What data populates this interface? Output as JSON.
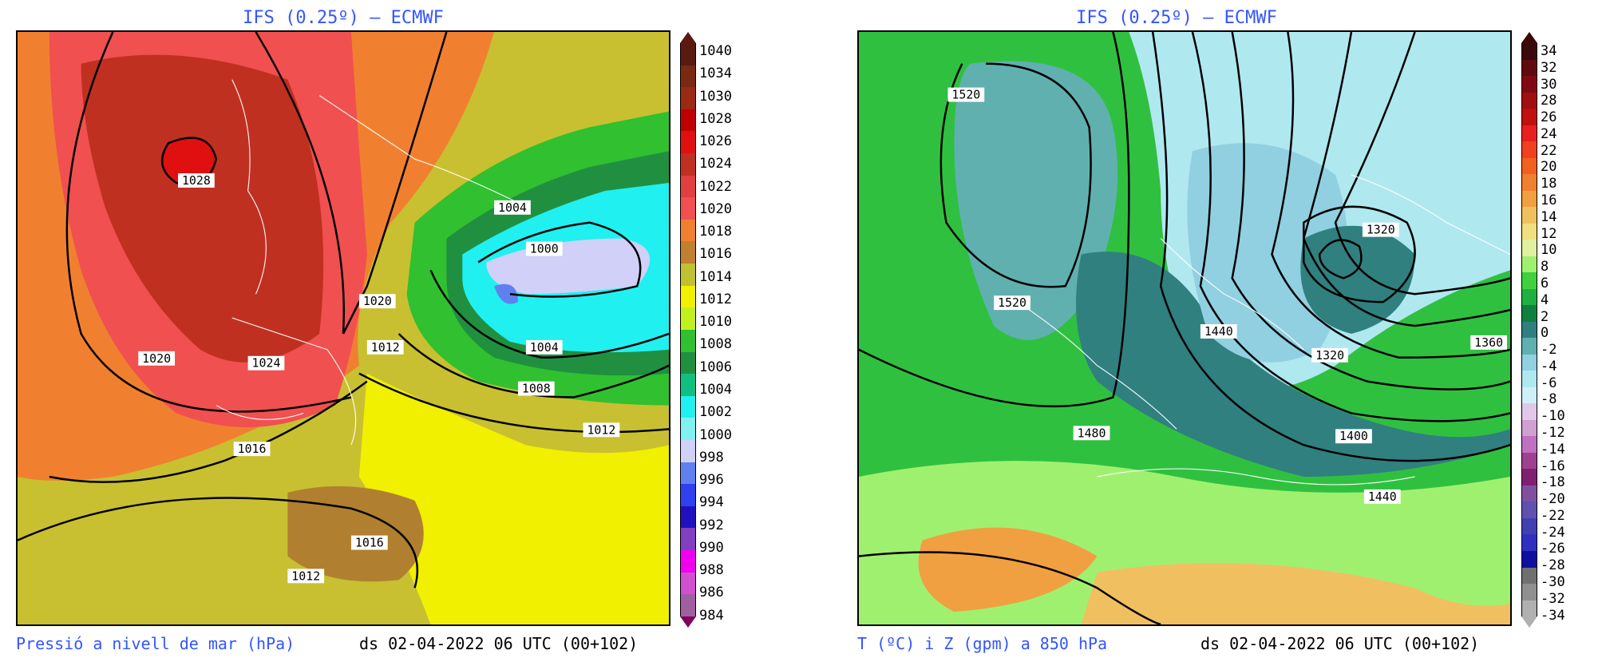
{
  "left_panel": {
    "title": "IFS (0.25º) – ECMWF",
    "footer_left": "Pressió a nivell de mar (hPa)",
    "footer_right": "ds 02-04-2022 06 UTC (00+102)",
    "colorbar": {
      "labels": [
        "1040",
        "1034",
        "1030",
        "1028",
        "1026",
        "1024",
        "1022",
        "1020",
        "1018",
        "1016",
        "1014",
        "1012",
        "1010",
        "1008",
        "1006",
        "1004",
        "1002",
        "1000",
        "998",
        "996",
        "994",
        "992",
        "990",
        "988",
        "986",
        "984"
      ],
      "colors": [
        "#5a1a10",
        "#7a2a12",
        "#9a2a14",
        "#c00000",
        "#e01010",
        "#c03020",
        "#e04040",
        "#f05050",
        "#f08030",
        "#c08030",
        "#c0c030",
        "#f0f000",
        "#c0f020",
        "#30c030",
        "#209040",
        "#10c080",
        "#20f0f0",
        "#80f0f0",
        "#d0d0f8",
        "#6080f0",
        "#3040f0",
        "#2010c0",
        "#8040c0",
        "#f000f0",
        "#d050d0",
        "#a060a0"
      ],
      "arrow_top": "#5a1a10",
      "arrow_bottom": "#800060"
    },
    "contour_labels": [
      {
        "text": "1028"
      },
      {
        "text": "1020"
      },
      {
        "text": "1024"
      },
      {
        "text": "1020"
      },
      {
        "text": "1012"
      },
      {
        "text": "1004"
      },
      {
        "text": "1000"
      },
      {
        "text": "1004"
      },
      {
        "text": "1008"
      },
      {
        "text": "1012"
      },
      {
        "text": "1016"
      },
      {
        "text": "1016"
      },
      {
        "text": "1012"
      }
    ]
  },
  "right_panel": {
    "title": "IFS (0.25º) – ECMWF",
    "footer_left": "T (ºC) i Z (gpm) a 850 hPa",
    "footer_right": "ds 02-04-2022 06 UTC (00+102)",
    "colorbar": {
      "labels": [
        "34",
        "32",
        "30",
        "28",
        "26",
        "24",
        "22",
        "20",
        "18",
        "16",
        "14",
        "12",
        "10",
        "8",
        "6",
        "4",
        "2",
        "0",
        "-2",
        "-4",
        "-6",
        "-8",
        "-10",
        "-12",
        "-14",
        "-16",
        "-18",
        "-20",
        "-22",
        "-24",
        "-26",
        "-28",
        "-30",
        "-32",
        "-34"
      ],
      "colors": [
        "#3a0a08",
        "#600a10",
        "#800a14",
        "#a01010",
        "#c01010",
        "#e82020",
        "#f04020",
        "#f06020",
        "#f08030",
        "#f0a040",
        "#f0c060",
        "#f0e080",
        "#e0f0a0",
        "#a0f070",
        "#40d040",
        "#20b040",
        "#108040",
        "#308080",
        "#60b0b0",
        "#90d0e0",
        "#b0e8f0",
        "#d0f0f8",
        "#e0c8e8",
        "#d0a0d0",
        "#c070c0",
        "#a04090",
        "#802070",
        "#8050a0",
        "#6050b0",
        "#4040b0",
        "#3030c0",
        "#1010a0",
        "#707070",
        "#909090",
        "#b0b0b0"
      ],
      "arrow_top": "#3a0a08",
      "arrow_bottom": "#b0b0b0"
    },
    "contour_labels": [
      {
        "text": "1520"
      },
      {
        "text": "1520"
      },
      {
        "text": "1320"
      },
      {
        "text": "1440"
      },
      {
        "text": "1320"
      },
      {
        "text": "1360"
      },
      {
        "text": "1480"
      },
      {
        "text": "1400"
      },
      {
        "text": "1440"
      }
    ]
  }
}
